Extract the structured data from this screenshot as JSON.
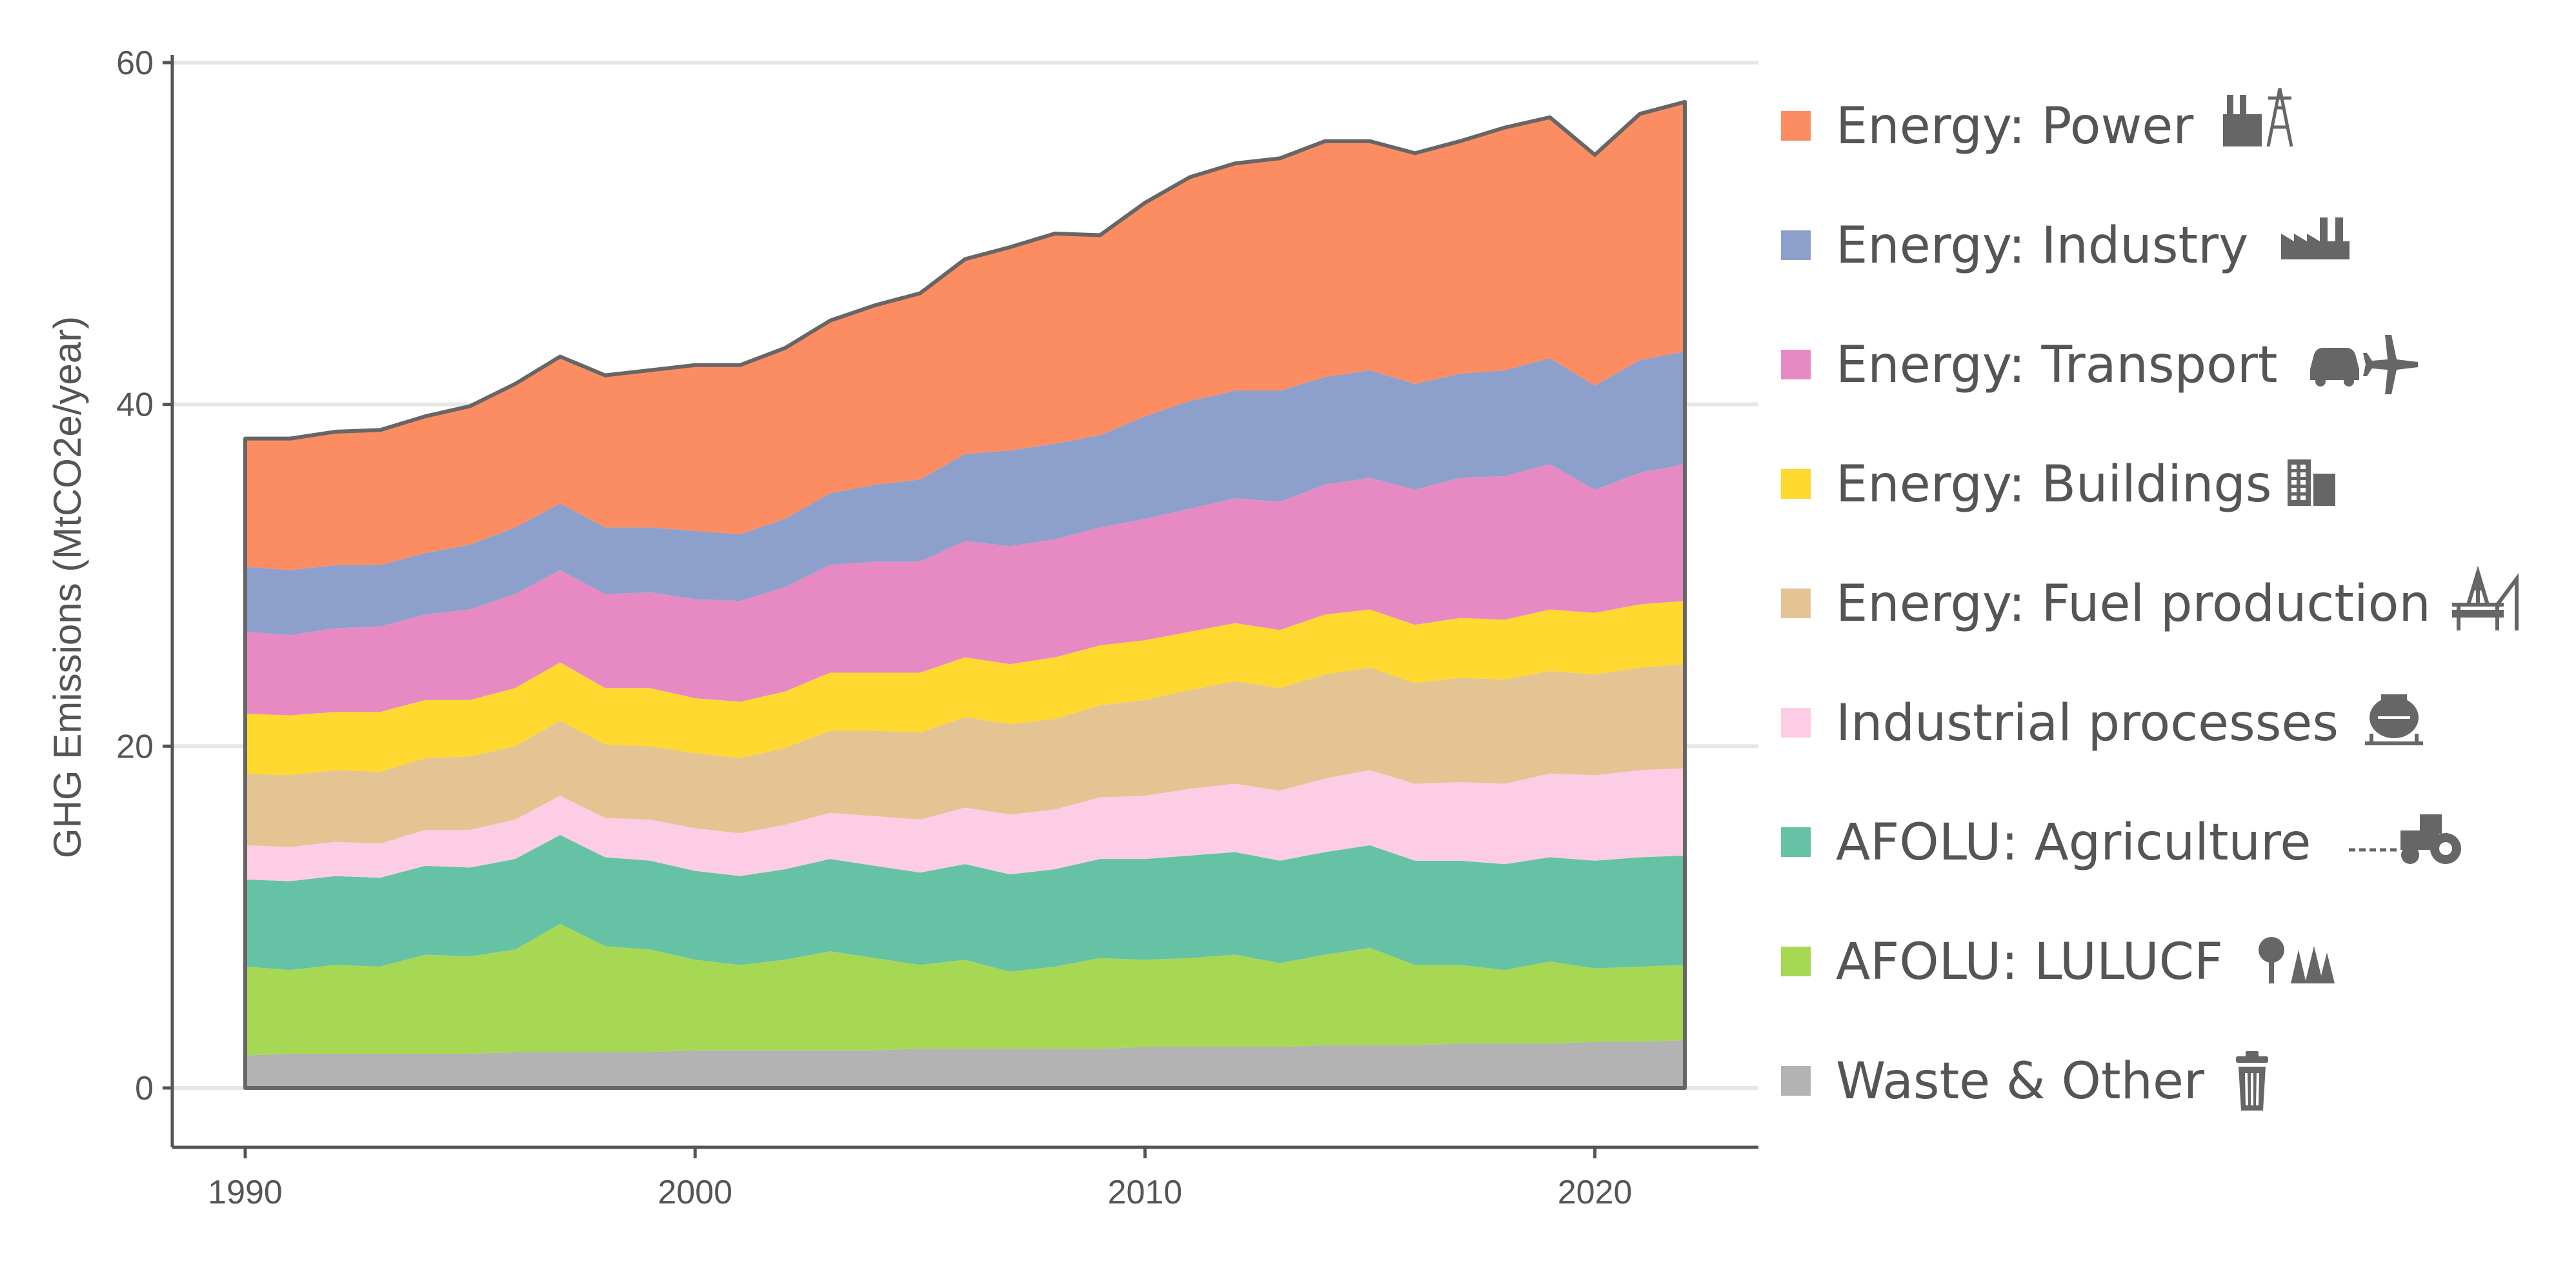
{
  "chart_data": {
    "type": "area",
    "stacked": true,
    "title": "",
    "xlabel": "",
    "ylabel": "GHG Emissions (MtCO2e/year)",
    "xlim": [
      1990,
      2022
    ],
    "ylim": [
      0,
      60
    ],
    "x_ticks": [
      1990,
      2000,
      2010,
      2020
    ],
    "y_ticks": [
      0,
      20,
      40,
      60
    ],
    "grid": "horizontal major lines",
    "legend_position": "right",
    "x": [
      1990,
      1991,
      1992,
      1993,
      1994,
      1995,
      1996,
      1997,
      1998,
      1999,
      2000,
      2001,
      2002,
      2003,
      2004,
      2005,
      2006,
      2007,
      2008,
      2009,
      2010,
      2011,
      2012,
      2013,
      2014,
      2015,
      2016,
      2017,
      2018,
      2019,
      2020,
      2021,
      2022
    ],
    "series": [
      {
        "name": "Waste & Other",
        "color": "#b3b3b3",
        "icon": "trash-can-icon",
        "values": [
          1.9,
          2.0,
          2.0,
          2.0,
          2.0,
          2.0,
          2.1,
          2.1,
          2.1,
          2.1,
          2.2,
          2.2,
          2.2,
          2.2,
          2.2,
          2.3,
          2.3,
          2.3,
          2.3,
          2.3,
          2.4,
          2.4,
          2.4,
          2.4,
          2.5,
          2.5,
          2.5,
          2.6,
          2.6,
          2.6,
          2.7,
          2.7,
          2.8
        ]
      },
      {
        "name": "AFOLU: LULUCF",
        "color": "#a6d854",
        "icon": "trees-icon",
        "values": [
          5.2,
          4.9,
          5.2,
          5.1,
          5.8,
          5.7,
          6.0,
          7.5,
          6.2,
          6.0,
          5.3,
          5.0,
          5.3,
          5.8,
          5.4,
          4.9,
          5.2,
          4.5,
          4.8,
          5.3,
          5.1,
          5.2,
          5.4,
          4.9,
          5.3,
          5.7,
          4.7,
          4.6,
          4.3,
          4.8,
          4.3,
          4.4,
          4.4
        ]
      },
      {
        "name": "AFOLU: Agriculture",
        "color": "#66c2a5",
        "icon": "tractor-icon",
        "values": [
          5.1,
          5.2,
          5.2,
          5.2,
          5.2,
          5.2,
          5.3,
          5.2,
          5.2,
          5.2,
          5.2,
          5.2,
          5.3,
          5.4,
          5.4,
          5.4,
          5.6,
          5.7,
          5.7,
          5.8,
          5.9,
          6.0,
          6.0,
          6.0,
          6.0,
          6.0,
          6.1,
          6.1,
          6.2,
          6.1,
          6.3,
          6.4,
          6.4
        ]
      },
      {
        "name": "Industrial processes",
        "color": "#fccde5",
        "icon": "cement-mixer-icon",
        "values": [
          2.0,
          2.0,
          2.0,
          2.0,
          2.1,
          2.2,
          2.3,
          2.3,
          2.3,
          2.4,
          2.5,
          2.5,
          2.6,
          2.7,
          2.9,
          3.1,
          3.3,
          3.5,
          3.5,
          3.6,
          3.7,
          3.9,
          4.0,
          4.1,
          4.3,
          4.4,
          4.5,
          4.6,
          4.7,
          4.9,
          5.0,
          5.1,
          5.1
        ]
      },
      {
        "name": "Energy: Fuel production",
        "color": "#e5c494",
        "icon": "oil-rig-icon",
        "values": [
          4.2,
          4.2,
          4.2,
          4.2,
          4.2,
          4.3,
          4.3,
          4.4,
          4.3,
          4.3,
          4.4,
          4.4,
          4.5,
          4.8,
          5.0,
          5.1,
          5.3,
          5.3,
          5.3,
          5.4,
          5.6,
          5.8,
          6.0,
          6.0,
          6.1,
          6.0,
          5.9,
          6.1,
          6.1,
          6.0,
          5.9,
          6.0,
          6.1
        ]
      },
      {
        "name": "Energy: Buildings",
        "color": "#ffd92f",
        "icon": "buildings-icon",
        "values": [
          3.5,
          3.5,
          3.4,
          3.5,
          3.4,
          3.3,
          3.4,
          3.4,
          3.3,
          3.4,
          3.2,
          3.3,
          3.3,
          3.4,
          3.4,
          3.5,
          3.5,
          3.5,
          3.6,
          3.5,
          3.5,
          3.4,
          3.4,
          3.4,
          3.5,
          3.4,
          3.4,
          3.5,
          3.5,
          3.6,
          3.6,
          3.7,
          3.7
        ]
      },
      {
        "name": "Energy: Transport",
        "color": "#e78ac3",
        "icon": "car-plane-icon",
        "values": [
          4.8,
          4.7,
          4.9,
          5.0,
          5.0,
          5.3,
          5.5,
          5.4,
          5.5,
          5.6,
          5.8,
          5.9,
          6.1,
          6.3,
          6.5,
          6.5,
          6.8,
          6.9,
          6.9,
          6.9,
          7.1,
          7.2,
          7.3,
          7.5,
          7.6,
          7.7,
          7.9,
          8.2,
          8.4,
          8.5,
          7.2,
          7.7,
          8.0
        ]
      },
      {
        "name": "Energy: Industry",
        "color": "#8da0cb",
        "icon": "factory-icon",
        "values": [
          3.8,
          3.8,
          3.7,
          3.6,
          3.6,
          3.8,
          3.9,
          3.9,
          3.9,
          3.8,
          4.0,
          3.9,
          4.0,
          4.2,
          4.5,
          4.8,
          5.1,
          5.6,
          5.6,
          5.4,
          6.0,
          6.3,
          6.3,
          6.5,
          6.3,
          6.3,
          6.2,
          6.1,
          6.2,
          6.2,
          6.1,
          6.6,
          6.6
        ]
      },
      {
        "name": "Energy: Power",
        "color": "#fc8d62",
        "icon": "power-plant-icon",
        "values": [
          7.5,
          7.7,
          7.8,
          7.9,
          8.0,
          8.1,
          8.4,
          8.6,
          8.9,
          9.2,
          9.7,
          9.9,
          10.0,
          10.1,
          10.5,
          10.9,
          11.4,
          11.9,
          12.3,
          11.7,
          12.5,
          13.1,
          13.3,
          13.6,
          13.8,
          13.4,
          13.5,
          13.6,
          14.2,
          14.1,
          13.5,
          14.4,
          14.6
        ]
      }
    ]
  }
}
